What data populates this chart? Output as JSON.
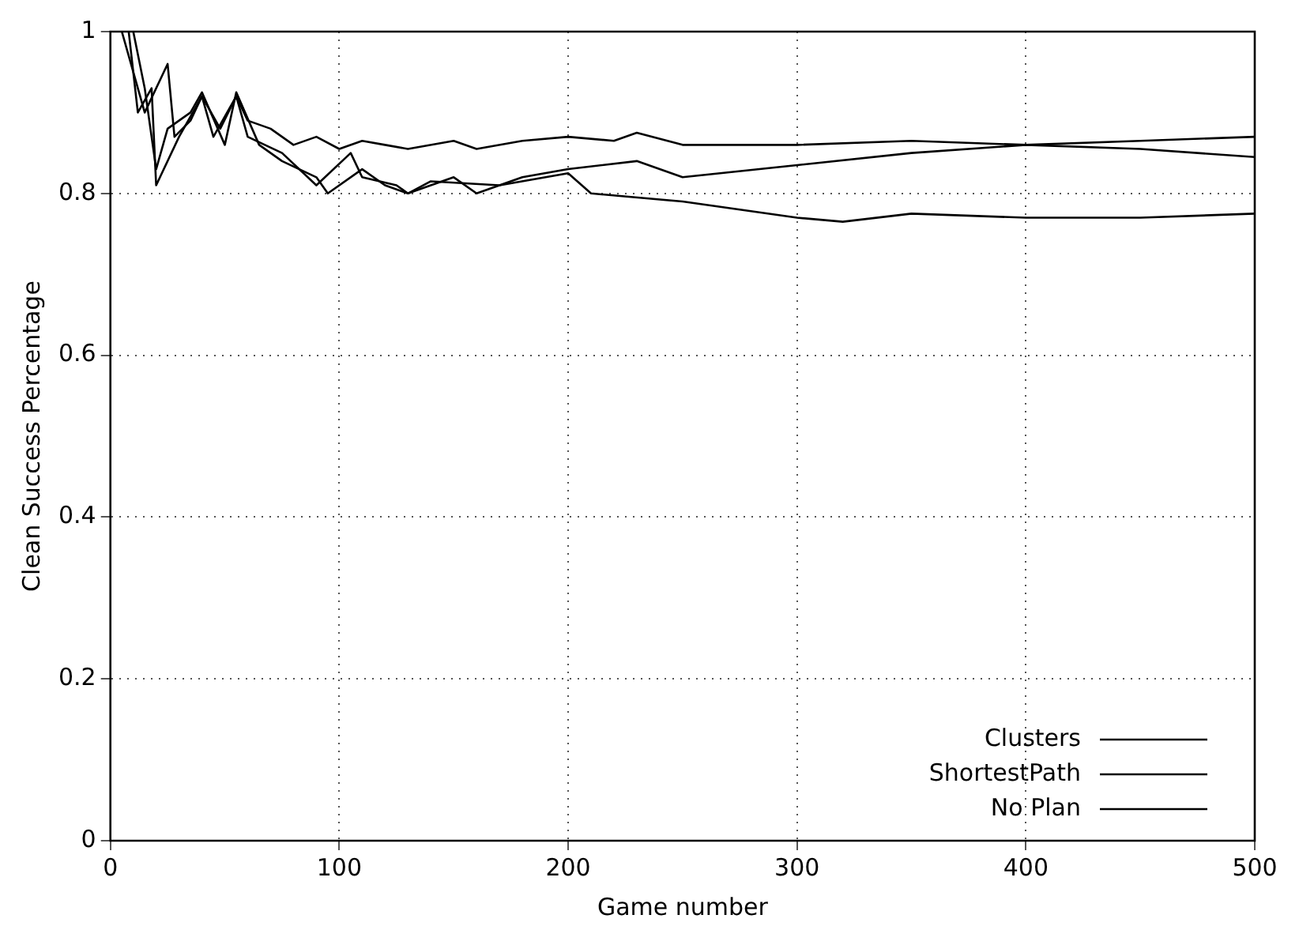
{
  "chart_data": {
    "type": "line",
    "xlabel": "Game number",
    "ylabel": "Clean Success Percentage",
    "xlim": [
      0,
      500
    ],
    "xticks": [
      0,
      100,
      200,
      300,
      400,
      500
    ],
    "ylim": [
      0,
      1
    ],
    "yticks": [
      0,
      0.2,
      0.4,
      0.6,
      0.8,
      1
    ],
    "grid": true,
    "legend": "bottom right",
    "marker": "none",
    "line_style": "solid",
    "series": [
      {
        "name": "Clusters",
        "color": "#000000",
        "x": [
          5,
          10,
          15,
          25,
          28,
          35,
          40,
          48,
          55,
          60,
          70,
          80,
          90,
          100,
          110,
          120,
          130,
          150,
          160,
          180,
          200,
          220,
          230,
          250,
          300,
          350,
          400,
          450,
          500
        ],
        "values": [
          1,
          0.95,
          0.9,
          0.96,
          0.87,
          0.89,
          0.92,
          0.88,
          0.92,
          0.89,
          0.88,
          0.86,
          0.87,
          0.855,
          0.865,
          0.86,
          0.855,
          0.865,
          0.855,
          0.865,
          0.87,
          0.865,
          0.875,
          0.86,
          0.86,
          0.865,
          0.86,
          0.865,
          0.87
        ]
      },
      {
        "name": "ShortestPath",
        "color": "#000000",
        "x": [
          8,
          12,
          18,
          20,
          30,
          40,
          45,
          55,
          60,
          75,
          90,
          105,
          110,
          125,
          130,
          150,
          160,
          180,
          200,
          230,
          250,
          300,
          350,
          400,
          450,
          500
        ],
        "values": [
          1,
          0.9,
          0.93,
          0.81,
          0.87,
          0.92,
          0.87,
          0.92,
          0.87,
          0.85,
          0.81,
          0.85,
          0.82,
          0.81,
          0.8,
          0.82,
          0.8,
          0.82,
          0.83,
          0.84,
          0.82,
          0.835,
          0.85,
          0.86,
          0.855,
          0.845
        ]
      },
      {
        "name": "No Plan",
        "color": "#000000",
        "x": [
          10,
          15,
          20,
          25,
          35,
          40,
          50,
          55,
          65,
          75,
          90,
          95,
          110,
          120,
          130,
          140,
          170,
          200,
          210,
          250,
          300,
          320,
          350,
          400,
          450,
          500
        ],
        "values": [
          1,
          0.93,
          0.83,
          0.88,
          0.9,
          0.925,
          0.86,
          0.925,
          0.86,
          0.84,
          0.82,
          0.8,
          0.83,
          0.81,
          0.8,
          0.815,
          0.81,
          0.825,
          0.8,
          0.79,
          0.77,
          0.765,
          0.775,
          0.77,
          0.77,
          0.775
        ]
      }
    ]
  }
}
